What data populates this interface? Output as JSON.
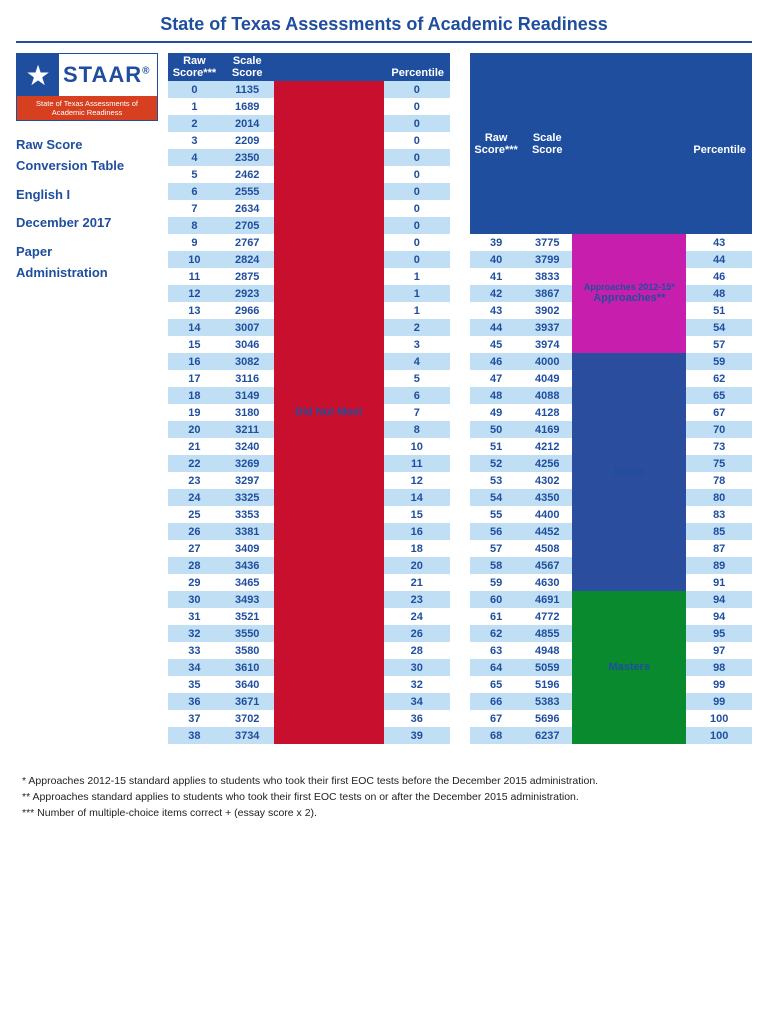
{
  "title": "State of Texas Assessments of Academic Readiness",
  "logo": {
    "brand": "STAAR",
    "sup": "®",
    "tagline": "State of Texas Assessments of Academic Readiness"
  },
  "side": {
    "l1": "Raw Score",
    "l2": "Conversion Table",
    "l3": "English I",
    "l4": "December 2017",
    "l5": "Paper",
    "l6": "Administration"
  },
  "headers": {
    "raw1": "Raw",
    "raw2": "Score***",
    "scale1": "Scale",
    "scale2": "Score",
    "pct": "Percentile"
  },
  "cats": {
    "dnm": "Did Not Meet",
    "app1": "Approaches 2012-15*",
    "app2": "Approaches**",
    "meets": "Meets",
    "masters": "Masters"
  },
  "rows1": [
    {
      "raw": 0,
      "sc": 1135,
      "pct": 0
    },
    {
      "raw": 1,
      "sc": 1689,
      "pct": 0
    },
    {
      "raw": 2,
      "sc": 2014,
      "pct": 0
    },
    {
      "raw": 3,
      "sc": 2209,
      "pct": 0
    },
    {
      "raw": 4,
      "sc": 2350,
      "pct": 0
    },
    {
      "raw": 5,
      "sc": 2462,
      "pct": 0
    },
    {
      "raw": 6,
      "sc": 2555,
      "pct": 0
    },
    {
      "raw": 7,
      "sc": 2634,
      "pct": 0
    },
    {
      "raw": 8,
      "sc": 2705,
      "pct": 0
    },
    {
      "raw": 9,
      "sc": 2767,
      "pct": 0
    },
    {
      "raw": 10,
      "sc": 2824,
      "pct": 0
    },
    {
      "raw": 11,
      "sc": 2875,
      "pct": 1
    },
    {
      "raw": 12,
      "sc": 2923,
      "pct": 1
    },
    {
      "raw": 13,
      "sc": 2966,
      "pct": 1
    },
    {
      "raw": 14,
      "sc": 3007,
      "pct": 2
    },
    {
      "raw": 15,
      "sc": 3046,
      "pct": 3
    },
    {
      "raw": 16,
      "sc": 3082,
      "pct": 4
    },
    {
      "raw": 17,
      "sc": 3116,
      "pct": 5
    },
    {
      "raw": 18,
      "sc": 3149,
      "pct": 6
    },
    {
      "raw": 19,
      "sc": 3180,
      "pct": 7
    },
    {
      "raw": 20,
      "sc": 3211,
      "pct": 8
    },
    {
      "raw": 21,
      "sc": 3240,
      "pct": 10
    },
    {
      "raw": 22,
      "sc": 3269,
      "pct": 11
    },
    {
      "raw": 23,
      "sc": 3297,
      "pct": 12
    },
    {
      "raw": 24,
      "sc": 3325,
      "pct": 14
    },
    {
      "raw": 25,
      "sc": 3353,
      "pct": 15
    },
    {
      "raw": 26,
      "sc": 3381,
      "pct": 16
    },
    {
      "raw": 27,
      "sc": 3409,
      "pct": 18
    },
    {
      "raw": 28,
      "sc": 3436,
      "pct": 20
    },
    {
      "raw": 29,
      "sc": 3465,
      "pct": 21
    },
    {
      "raw": 30,
      "sc": 3493,
      "pct": 23
    },
    {
      "raw": 31,
      "sc": 3521,
      "pct": 24
    },
    {
      "raw": 32,
      "sc": 3550,
      "pct": 26
    },
    {
      "raw": 33,
      "sc": 3580,
      "pct": 28
    },
    {
      "raw": 34,
      "sc": 3610,
      "pct": 30
    },
    {
      "raw": 35,
      "sc": 3640,
      "pct": 32
    },
    {
      "raw": 36,
      "sc": 3671,
      "pct": 34
    },
    {
      "raw": 37,
      "sc": 3702,
      "pct": 36
    },
    {
      "raw": 38,
      "sc": 3734,
      "pct": 39
    }
  ],
  "rows2": [
    {
      "raw": 39,
      "sc": 3775,
      "pct": 43,
      "cat": "app"
    },
    {
      "raw": 40,
      "sc": 3799,
      "pct": 44,
      "cat": "app"
    },
    {
      "raw": 41,
      "sc": 3833,
      "pct": 46,
      "cat": "app"
    },
    {
      "raw": 42,
      "sc": 3867,
      "pct": 48,
      "cat": "app"
    },
    {
      "raw": 43,
      "sc": 3902,
      "pct": 51,
      "cat": "app"
    },
    {
      "raw": 44,
      "sc": 3937,
      "pct": 54,
      "cat": "app"
    },
    {
      "raw": 45,
      "sc": 3974,
      "pct": 57,
      "cat": "app"
    },
    {
      "raw": 46,
      "sc": 4000,
      "pct": 59,
      "cat": "met"
    },
    {
      "raw": 47,
      "sc": 4049,
      "pct": 62,
      "cat": "met"
    },
    {
      "raw": 48,
      "sc": 4088,
      "pct": 65,
      "cat": "met"
    },
    {
      "raw": 49,
      "sc": 4128,
      "pct": 67,
      "cat": "met"
    },
    {
      "raw": 50,
      "sc": 4169,
      "pct": 70,
      "cat": "met"
    },
    {
      "raw": 51,
      "sc": 4212,
      "pct": 73,
      "cat": "met"
    },
    {
      "raw": 52,
      "sc": 4256,
      "pct": 75,
      "cat": "met"
    },
    {
      "raw": 53,
      "sc": 4302,
      "pct": 78,
      "cat": "met"
    },
    {
      "raw": 54,
      "sc": 4350,
      "pct": 80,
      "cat": "met"
    },
    {
      "raw": 55,
      "sc": 4400,
      "pct": 83,
      "cat": "met"
    },
    {
      "raw": 56,
      "sc": 4452,
      "pct": 85,
      "cat": "met"
    },
    {
      "raw": 57,
      "sc": 4508,
      "pct": 87,
      "cat": "met"
    },
    {
      "raw": 58,
      "sc": 4567,
      "pct": 89,
      "cat": "met"
    },
    {
      "raw": 59,
      "sc": 4630,
      "pct": 91,
      "cat": "met"
    },
    {
      "raw": 60,
      "sc": 4691,
      "pct": 94,
      "cat": "mst"
    },
    {
      "raw": 61,
      "sc": 4772,
      "pct": 94,
      "cat": "mst"
    },
    {
      "raw": 62,
      "sc": 4855,
      "pct": 95,
      "cat": "mst"
    },
    {
      "raw": 63,
      "sc": 4948,
      "pct": 97,
      "cat": "mst"
    },
    {
      "raw": 64,
      "sc": 5059,
      "pct": 98,
      "cat": "mst"
    },
    {
      "raw": 65,
      "sc": 5196,
      "pct": 99,
      "cat": "mst"
    },
    {
      "raw": 66,
      "sc": 5383,
      "pct": 99,
      "cat": "mst"
    },
    {
      "raw": 67,
      "sc": 5696,
      "pct": 100,
      "cat": "mst"
    },
    {
      "raw": 68,
      "sc": 6237,
      "pct": 100,
      "cat": "mst"
    }
  ],
  "footnotes": {
    "f1": "  * Approaches 2012-15 standard applies to students who took their first EOC tests before the December 2015 administration.",
    "f2": " ** Approaches standard applies to students who took their first EOC tests on or after the December 2015 administration.",
    "f3": "*** Number of multiple-choice items correct + (essay score x 2)."
  }
}
